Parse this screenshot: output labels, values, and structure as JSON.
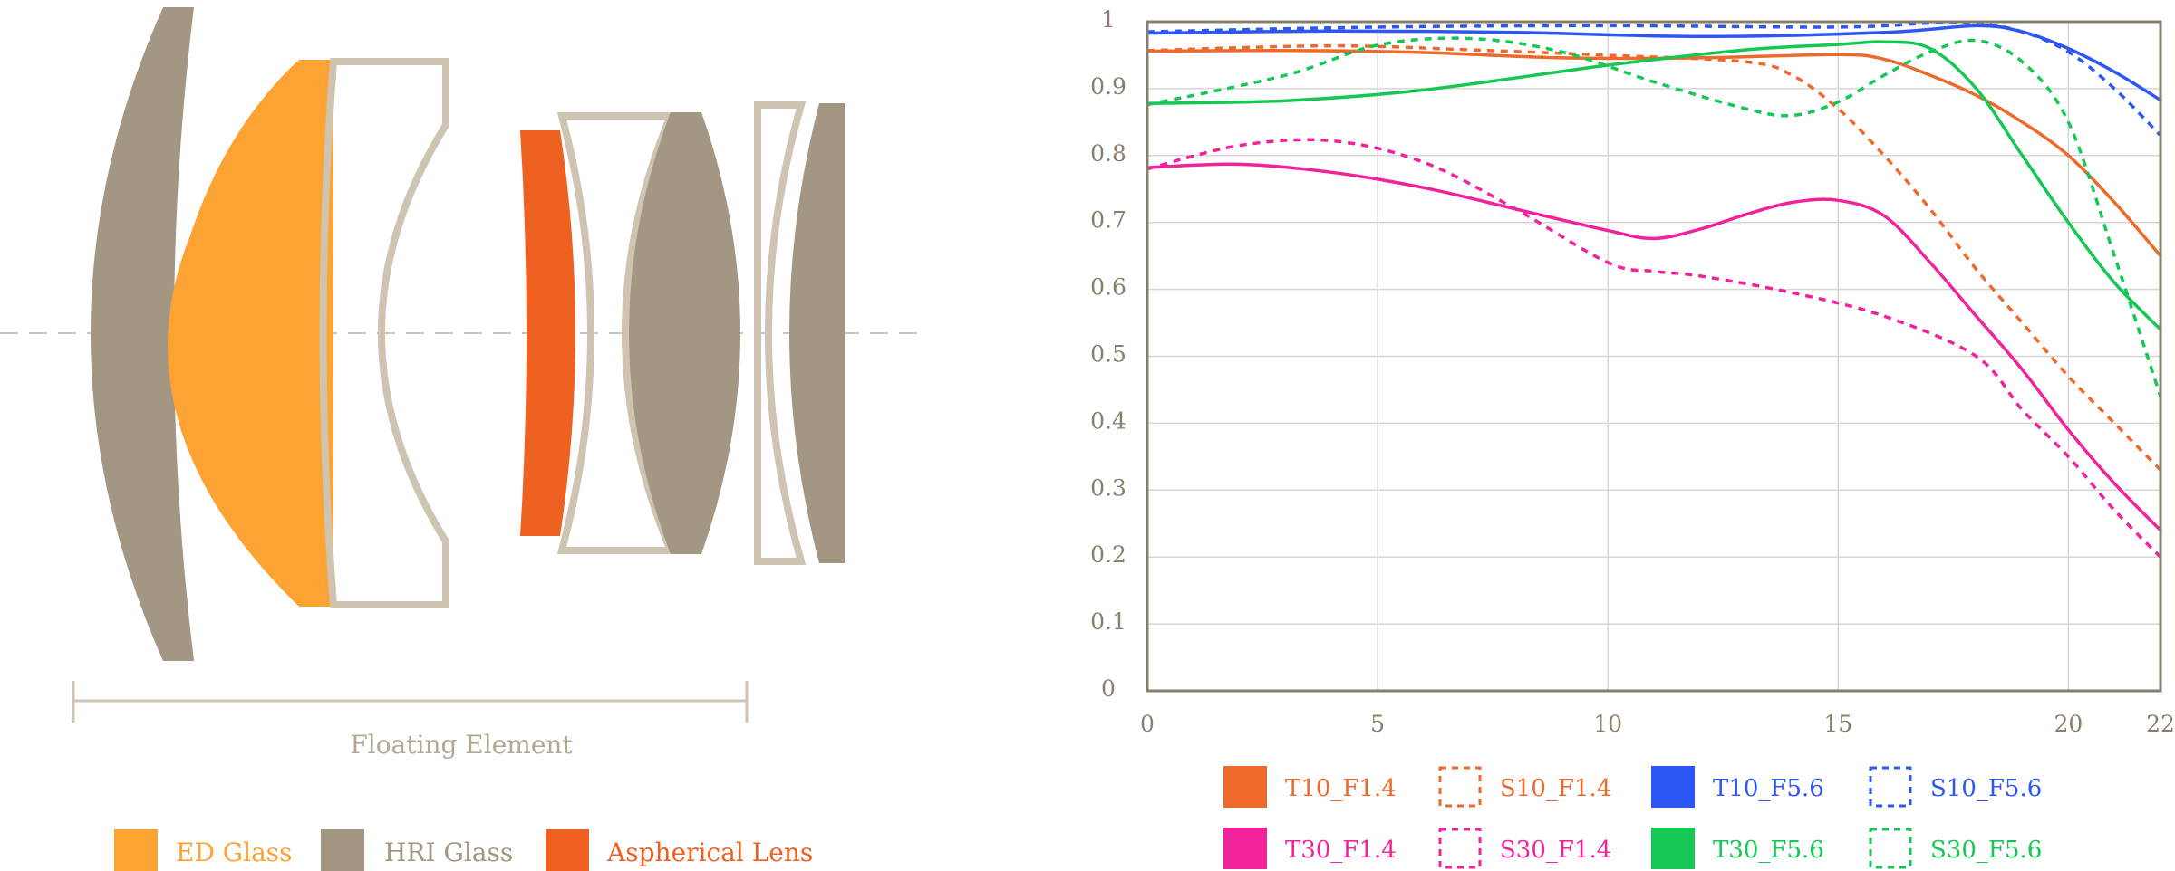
{
  "diagram": {
    "floating_label": "Floating Element",
    "legend": [
      {
        "key": "ed",
        "label": "ED Glass",
        "color": "#fda333"
      },
      {
        "key": "hri",
        "label": "HRI Glass",
        "color": "#a39682"
      },
      {
        "key": "asph",
        "label": "Aspherical Lens",
        "color": "#ee6120"
      }
    ],
    "outline_color": "#cfc3b2"
  },
  "chart_data": {
    "type": "line",
    "title": "",
    "xlabel": "",
    "ylabel": "",
    "xlim": [
      0,
      22
    ],
    "ylim": [
      0,
      1
    ],
    "x_ticks": [
      "0",
      "5",
      "10",
      "15",
      "20",
      "22"
    ],
    "y_ticks": [
      "0",
      "0.1",
      "0.2",
      "0.3",
      "0.4",
      "0.5",
      "0.6",
      "0.7",
      "0.8",
      "0.9",
      "1"
    ],
    "grid": true,
    "series": [
      {
        "name": "T10_F1.4",
        "color": "#ee6a2c",
        "dashed": false,
        "points": [
          [
            0,
            0.956
          ],
          [
            3,
            0.957
          ],
          [
            6,
            0.954
          ],
          [
            9,
            0.946
          ],
          [
            12,
            0.946
          ],
          [
            15,
            0.951
          ],
          [
            16,
            0.944
          ],
          [
            17,
            0.92
          ],
          [
            18,
            0.89
          ],
          [
            19,
            0.85
          ],
          [
            20,
            0.8
          ],
          [
            21,
            0.73
          ],
          [
            22,
            0.65
          ]
        ]
      },
      {
        "name": "S10_F1.4",
        "color": "#ee6a2c",
        "dashed": true,
        "points": [
          [
            0,
            0.957
          ],
          [
            4,
            0.964
          ],
          [
            7,
            0.958
          ],
          [
            10,
            0.95
          ],
          [
            13,
            0.94
          ],
          [
            14,
            0.92
          ],
          [
            15,
            0.87
          ],
          [
            16,
            0.8
          ],
          [
            17,
            0.72
          ],
          [
            18,
            0.63
          ],
          [
            19,
            0.55
          ],
          [
            20,
            0.47
          ],
          [
            21,
            0.4
          ],
          [
            22,
            0.33
          ]
        ]
      },
      {
        "name": "T10_F5.6",
        "color": "#2d57f5",
        "dashed": false,
        "points": [
          [
            0,
            0.983
          ],
          [
            4,
            0.986
          ],
          [
            8,
            0.984
          ],
          [
            12,
            0.978
          ],
          [
            16,
            0.984
          ],
          [
            18,
            0.994
          ],
          [
            19,
            0.985
          ],
          [
            20,
            0.96
          ],
          [
            21,
            0.925
          ],
          [
            22,
            0.883
          ]
        ]
      },
      {
        "name": "S10_F5.6",
        "color": "#2d57f5",
        "dashed": true,
        "points": [
          [
            0,
            0.985
          ],
          [
            5,
            0.992
          ],
          [
            10,
            0.994
          ],
          [
            15,
            0.992
          ],
          [
            17,
            0.998
          ],
          [
            18,
            0.998
          ],
          [
            19,
            0.985
          ],
          [
            20,
            0.955
          ],
          [
            21,
            0.9
          ],
          [
            22,
            0.83
          ]
        ]
      },
      {
        "name": "T30_F1.4",
        "color": "#f0239a",
        "dashed": false,
        "points": [
          [
            0,
            0.782
          ],
          [
            2,
            0.787
          ],
          [
            4,
            0.775
          ],
          [
            6,
            0.752
          ],
          [
            8,
            0.72
          ],
          [
            10,
            0.688
          ],
          [
            11,
            0.676
          ],
          [
            12,
            0.69
          ],
          [
            13,
            0.712
          ],
          [
            14,
            0.73
          ],
          [
            15,
            0.733
          ],
          [
            16,
            0.71
          ],
          [
            17,
            0.64
          ],
          [
            18,
            0.56
          ],
          [
            19,
            0.48
          ],
          [
            20,
            0.39
          ],
          [
            21,
            0.31
          ],
          [
            22,
            0.24
          ]
        ]
      },
      {
        "name": "S30_F1.4",
        "color": "#f0239a",
        "dashed": true,
        "points": [
          [
            0,
            0.78
          ],
          [
            2,
            0.815
          ],
          [
            4,
            0.822
          ],
          [
            6,
            0.79
          ],
          [
            8,
            0.72
          ],
          [
            10,
            0.64
          ],
          [
            11,
            0.627
          ],
          [
            12,
            0.62
          ],
          [
            14,
            0.595
          ],
          [
            16,
            0.56
          ],
          [
            18,
            0.5
          ],
          [
            19,
            0.42
          ],
          [
            20,
            0.35
          ],
          [
            21,
            0.27
          ],
          [
            22,
            0.2
          ]
        ]
      },
      {
        "name": "T30_F5.6",
        "color": "#16c756",
        "dashed": false,
        "points": [
          [
            0,
            0.878
          ],
          [
            3,
            0.882
          ],
          [
            6,
            0.898
          ],
          [
            10,
            0.935
          ],
          [
            13,
            0.958
          ],
          [
            15,
            0.966
          ],
          [
            16,
            0.97
          ],
          [
            17,
            0.96
          ],
          [
            18,
            0.9
          ],
          [
            19,
            0.8
          ],
          [
            20,
            0.7
          ],
          [
            21,
            0.61
          ],
          [
            22,
            0.54
          ]
        ]
      },
      {
        "name": "S30_F5.6",
        "color": "#16c756",
        "dashed": true,
        "points": [
          [
            0,
            0.876
          ],
          [
            3,
            0.92
          ],
          [
            5,
            0.965
          ],
          [
            7,
            0.975
          ],
          [
            9,
            0.955
          ],
          [
            11,
            0.91
          ],
          [
            13,
            0.87
          ],
          [
            14,
            0.86
          ],
          [
            15,
            0.88
          ],
          [
            16,
            0.92
          ],
          [
            17,
            0.955
          ],
          [
            18,
            0.972
          ],
          [
            19,
            0.94
          ],
          [
            20,
            0.85
          ],
          [
            21,
            0.65
          ],
          [
            22,
            0.44
          ]
        ]
      }
    ]
  },
  "colors": {
    "axis": "#85806a",
    "grid": "#d6d6d6",
    "tick_text": "#8a7f6c"
  }
}
